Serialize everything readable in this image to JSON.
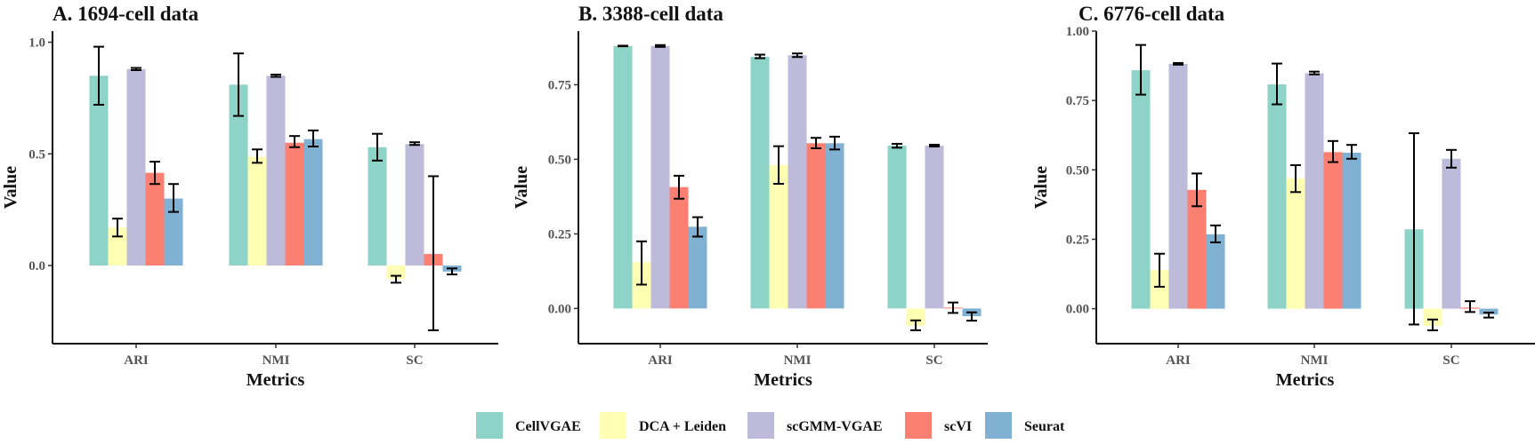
{
  "chart_data": [
    {
      "type": "bar",
      "title": "A. 1694-cell data",
      "xlabel": "Metrics",
      "ylabel": "Value",
      "categories": [
        "ARI",
        "NMI",
        "SC"
      ],
      "ylim": [
        -0.35,
        1.05
      ],
      "yticks": [
        0.0,
        0.5,
        1.0
      ],
      "ytick_labels": [
        "0.0",
        "0.5",
        "1.0"
      ],
      "grid": false,
      "series": [
        {
          "name": "CellVGAE",
          "values": [
            0.85,
            0.81,
            0.53
          ],
          "err_low": [
            0.72,
            0.67,
            0.47
          ],
          "err_high": [
            0.98,
            0.95,
            0.59
          ]
        },
        {
          "name": "DCA + Leiden",
          "values": [
            0.17,
            0.487,
            -0.06
          ],
          "err_low": [
            0.13,
            0.46,
            -0.077
          ],
          "err_high": [
            0.21,
            0.52,
            -0.046
          ]
        },
        {
          "name": "scGMM-VGAE",
          "values": [
            0.88,
            0.85,
            0.544
          ],
          "err_low": [
            0.875,
            0.845,
            0.54
          ],
          "err_high": [
            0.885,
            0.855,
            0.552
          ]
        },
        {
          "name": "scVI",
          "values": [
            0.415,
            0.55,
            0.052
          ],
          "err_low": [
            0.365,
            0.53,
            -0.29
          ],
          "err_high": [
            0.465,
            0.58,
            0.4
          ]
        },
        {
          "name": "Seurat",
          "values": [
            0.3,
            0.566,
            -0.027
          ],
          "err_low": [
            0.24,
            0.533,
            -0.04
          ],
          "err_high": [
            0.365,
            0.605,
            -0.013
          ]
        }
      ]
    },
    {
      "type": "bar",
      "title": "B. 3388-cell data",
      "xlabel": "Metrics",
      "ylabel": "Value",
      "categories": [
        "ARI",
        "NMI",
        "SC"
      ],
      "ylim": [
        -0.118,
        0.93
      ],
      "yticks": [
        0.0,
        0.25,
        0.5,
        0.75
      ],
      "ytick_labels": [
        "0.00",
        "0.25",
        "0.50",
        "0.75"
      ],
      "grid": false,
      "series": [
        {
          "name": "CellVGAE",
          "values": [
            0.88,
            0.844,
            0.546
          ],
          "err_low": [
            0.879,
            0.839,
            0.539
          ],
          "err_high": [
            0.881,
            0.851,
            0.552
          ]
        },
        {
          "name": "DCA + Leiden",
          "values": [
            0.155,
            0.48,
            -0.058
          ],
          "err_low": [
            0.08,
            0.418,
            -0.073
          ],
          "err_high": [
            0.225,
            0.544,
            -0.04
          ]
        },
        {
          "name": "scGMM-VGAE",
          "values": [
            0.88,
            0.849,
            0.546
          ],
          "err_low": [
            0.877,
            0.843,
            0.543
          ],
          "err_high": [
            0.883,
            0.855,
            0.549
          ]
        },
        {
          "name": "scVI",
          "values": [
            0.407,
            0.554,
            0.003
          ],
          "err_low": [
            0.368,
            0.537,
            -0.015
          ],
          "err_high": [
            0.445,
            0.572,
            0.02
          ]
        },
        {
          "name": "Seurat",
          "values": [
            0.274,
            0.554,
            -0.026
          ],
          "err_low": [
            0.241,
            0.533,
            -0.041
          ],
          "err_high": [
            0.306,
            0.576,
            -0.013
          ]
        }
      ]
    },
    {
      "type": "bar",
      "title": "C. 6776-cell data",
      "xlabel": "Metrics",
      "ylabel": "Value",
      "categories": [
        "ARI",
        "NMI",
        "SC"
      ],
      "ylim": [
        -0.126,
        1.0
      ],
      "yticks": [
        0.0,
        0.25,
        0.5,
        0.75,
        1.0
      ],
      "ytick_labels": [
        "0.00",
        "0.25",
        "0.50",
        "0.75",
        "1.00"
      ],
      "grid": false,
      "series": [
        {
          "name": "CellVGAE",
          "values": [
            0.859,
            0.808,
            0.286
          ],
          "err_low": [
            0.771,
            0.736,
            -0.057
          ],
          "err_high": [
            0.95,
            0.883,
            0.632
          ]
        },
        {
          "name": "DCA + Leiden",
          "values": [
            0.139,
            0.47,
            -0.062
          ],
          "err_low": [
            0.079,
            0.42,
            -0.078
          ],
          "err_high": [
            0.198,
            0.517,
            -0.039
          ]
        },
        {
          "name": "scGMM-VGAE",
          "values": [
            0.882,
            0.848,
            0.54
          ],
          "err_low": [
            0.879,
            0.844,
            0.508
          ],
          "err_high": [
            0.885,
            0.854,
            0.572
          ]
        },
        {
          "name": "scVI",
          "values": [
            0.428,
            0.564,
            0.004
          ],
          "err_low": [
            0.369,
            0.528,
            -0.012
          ],
          "err_high": [
            0.487,
            0.604,
            0.027
          ]
        },
        {
          "name": "Seurat",
          "values": [
            0.268,
            0.562,
            -0.021
          ],
          "err_low": [
            0.239,
            0.54,
            -0.032
          ],
          "err_high": [
            0.3,
            0.59,
            -0.014
          ]
        }
      ]
    }
  ],
  "legend": {
    "placement": "bottom",
    "items": [
      {
        "label": "CellVGAE",
        "color": "#8DD3C7"
      },
      {
        "label": "DCA + Leiden",
        "color": "#FFFFB3"
      },
      {
        "label": "scGMM-VGAE",
        "color": "#BEBADA"
      },
      {
        "label": "scVI",
        "color": "#FB8072"
      },
      {
        "label": "Seurat",
        "color": "#80B1D3"
      }
    ]
  }
}
